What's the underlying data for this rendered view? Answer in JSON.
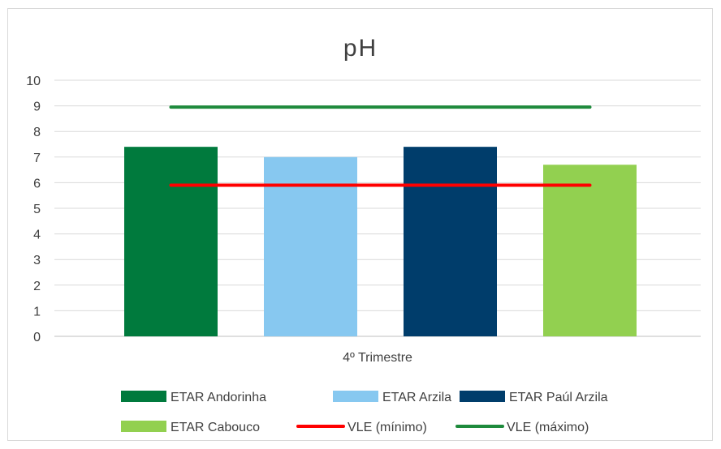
{
  "chart_data": {
    "type": "bar",
    "title": "pH",
    "categories": [
      "4º Trimestre"
    ],
    "ylim": [
      0,
      10
    ],
    "yticks": [
      0,
      1,
      2,
      3,
      4,
      5,
      6,
      7,
      8,
      9,
      10
    ],
    "grid": true,
    "legend_position": "bottom",
    "series": [
      {
        "name": "ETAR Andorinha",
        "type": "bar",
        "values": [
          7.4
        ],
        "color": "#007a3d"
      },
      {
        "name": "ETAR Arzila",
        "type": "bar",
        "values": [
          7.0
        ],
        "color": "#87c8f0"
      },
      {
        "name": "ETAR Paúl Arzila",
        "type": "bar",
        "values": [
          7.4
        ],
        "color": "#003d6b"
      },
      {
        "name": "ETAR Cabouco",
        "type": "bar",
        "values": [
          6.7
        ],
        "color": "#92d050"
      },
      {
        "name": "VLE (mínimo)",
        "type": "line",
        "values": [
          5.9
        ],
        "color": "#ff0000"
      },
      {
        "name": "VLE (máximo)",
        "type": "line",
        "values": [
          8.95
        ],
        "color": "#1e8a3c"
      }
    ]
  }
}
